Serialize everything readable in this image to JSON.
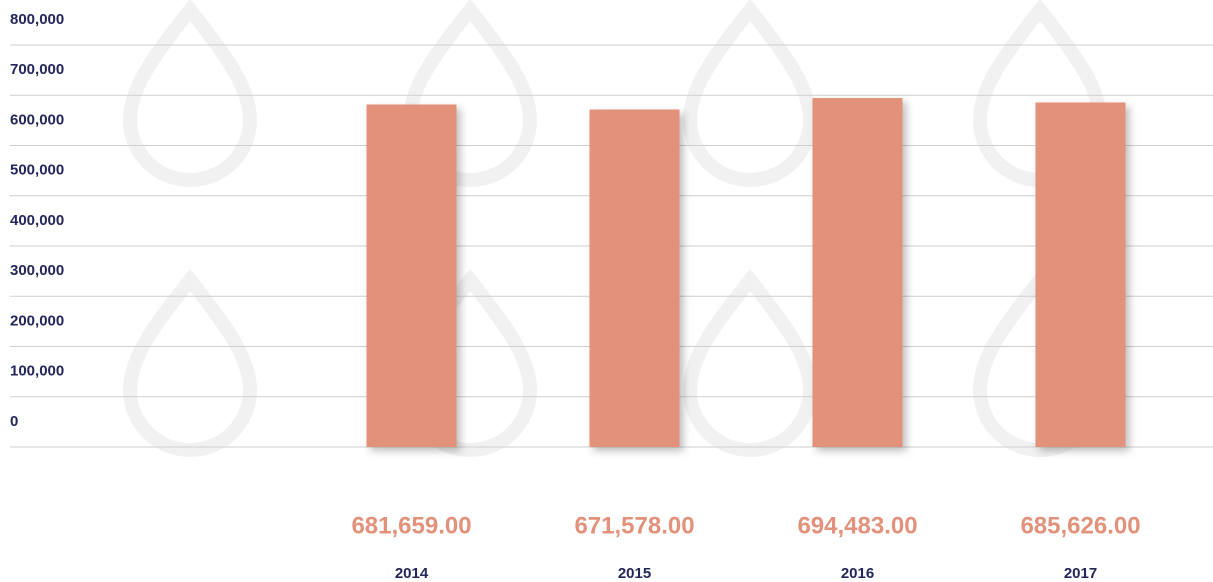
{
  "chart_data": {
    "type": "bar",
    "categories": [
      "2014",
      "2015",
      "2016",
      "2017"
    ],
    "values": [
      681659,
      671578,
      694483,
      685626
    ],
    "value_labels": [
      "681,659.00",
      "671,578.00",
      "694,483.00",
      "685,626.00"
    ],
    "color": "#e2917a",
    "ylim": [
      0,
      800000
    ],
    "yticks": [
      0,
      {
        "value": 100000,
        "label": "100,000"
      },
      {
        "value": 200000,
        "label": "200,000"
      },
      {
        "value": 300000,
        "label": "300,000"
      },
      {
        "value": 400000,
        "label": "400,000"
      },
      {
        "value": 500000,
        "label": "500,000"
      },
      {
        "value": 600000,
        "label": "600,000"
      },
      {
        "value": 700000,
        "label": "700,000"
      },
      {
        "value": 800000,
        "label": "800,000"
      }
    ],
    "grid": true
  }
}
